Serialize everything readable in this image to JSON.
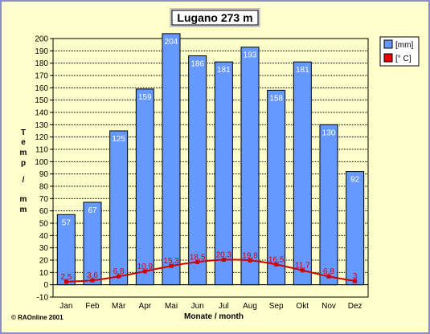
{
  "chart_data": {
    "type": "bar",
    "title": "Lugano 273 m",
    "xlabel": "Monate / month",
    "ylabel": "Temp / mm",
    "ylim": [
      -10,
      200
    ],
    "ytick_step": 10,
    "grid": true,
    "legend_position": "top-right",
    "categories": [
      "Jan",
      "Feb",
      "Mär",
      "Apr",
      "Mai",
      "Jun",
      "Jul",
      "Aug",
      "Sep",
      "Okt",
      "Nov",
      "Dez"
    ],
    "series": [
      {
        "name": "[mm]",
        "type": "bar",
        "color": "#6699ff",
        "values": [
          57,
          67,
          125,
          159,
          204,
          186,
          181,
          193,
          158,
          181,
          130,
          92
        ]
      },
      {
        "name": "[° C]",
        "type": "line",
        "color": "#cc0000",
        "values": [
          2.5,
          3.6,
          6.8,
          10.9,
          15.3,
          18.5,
          20.3,
          19.8,
          16.5,
          11.7,
          6.8,
          3
        ],
        "labels": [
          "2,5",
          "3,6",
          "6,8",
          "10,9",
          "15,3",
          "18,5",
          "20,3",
          "19,8",
          "16,5",
          "11,7",
          "6,8",
          "3"
        ]
      }
    ]
  },
  "copyright": "©  RAOnline 2001",
  "colors": {
    "background": "#ffffcc",
    "frame": "#8c8cc8"
  }
}
